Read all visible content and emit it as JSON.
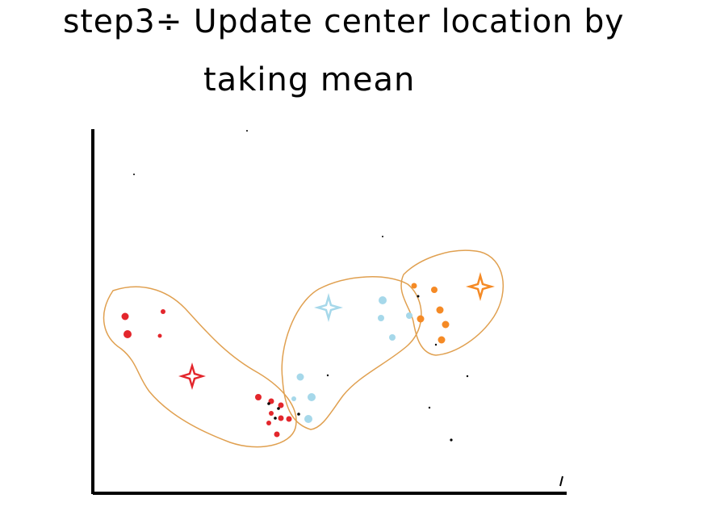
{
  "title": {
    "line1": "step3÷ Update center location by",
    "line2": "taking mean"
  },
  "colors": {
    "red": "#e3262c",
    "blue": "#a6d8ea",
    "orange": "#f58a25",
    "outline": "#e0a050",
    "axis": "#000000"
  },
  "clusters": [
    {
      "name": "red-cluster",
      "color": "red",
      "icon": "star-centroid"
    },
    {
      "name": "blue-cluster",
      "color": "blue",
      "icon": "star-centroid"
    },
    {
      "name": "orange-cluster",
      "color": "orange",
      "icon": "star-centroid"
    }
  ]
}
